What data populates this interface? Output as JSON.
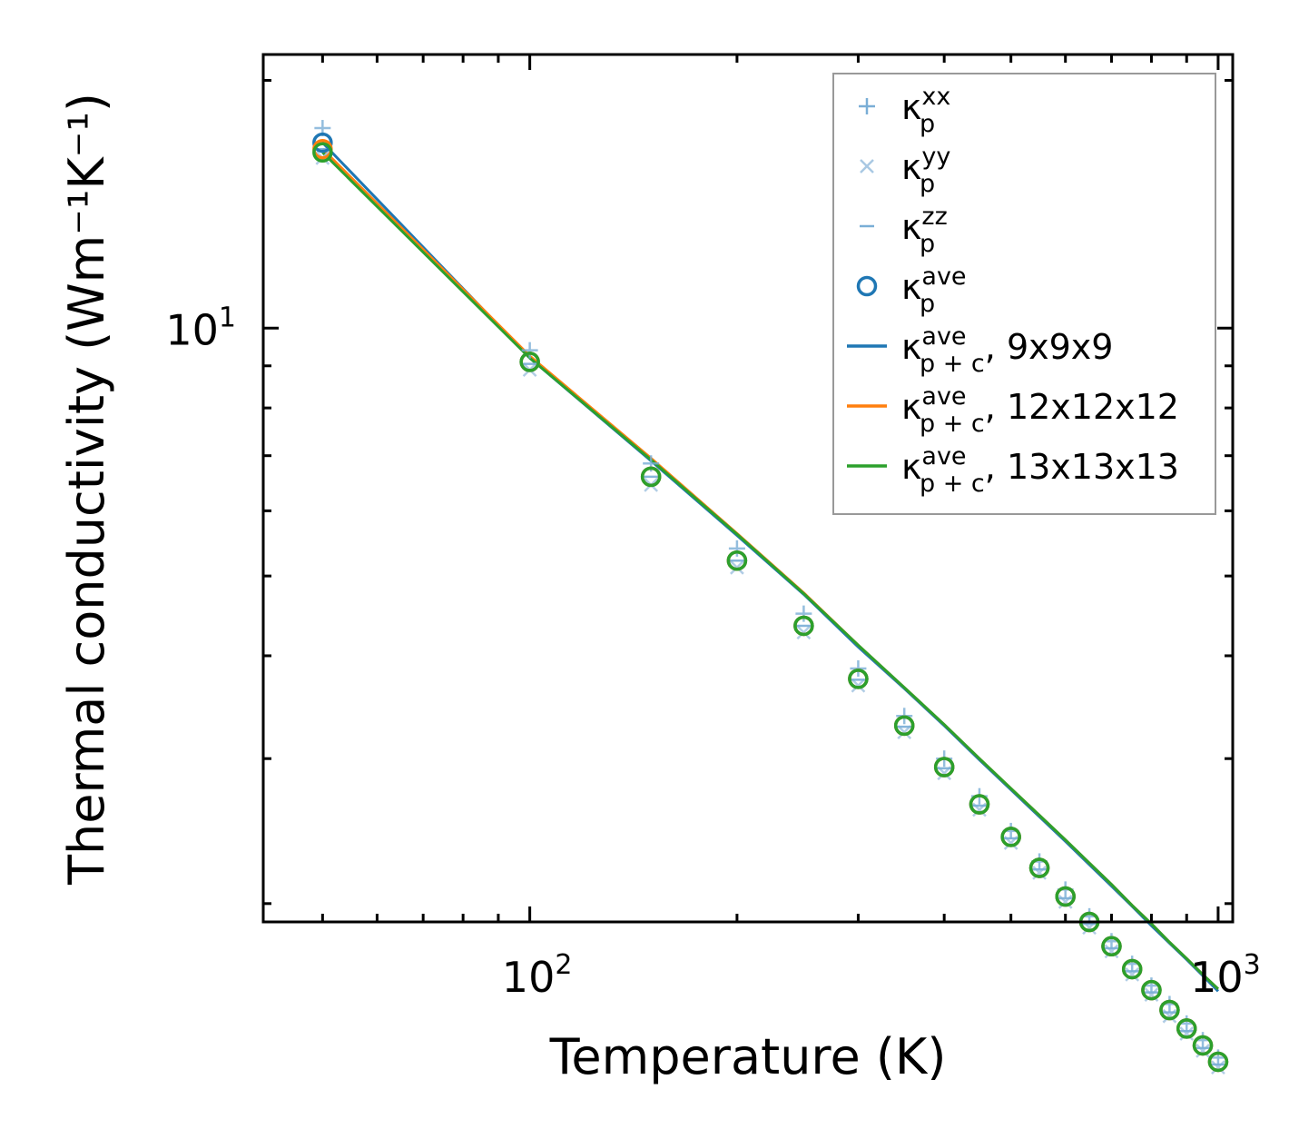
{
  "chart_data": {
    "type": "line",
    "xscale": "log",
    "yscale": "log",
    "xlabel": "Temperature (K)",
    "ylabel": "Thermal conductivity (Wm⁻¹K⁻¹)",
    "xlim": [
      41,
      1050
    ],
    "ylim": [
      1.9,
      21.5
    ],
    "x_major_ticks": [
      {
        "value": 100,
        "base": "10",
        "exp": "2"
      },
      {
        "value": 1000,
        "base": "10",
        "exp": "3"
      }
    ],
    "y_major_ticks": [
      {
        "value": 10,
        "base": "10",
        "exp": "1"
      }
    ],
    "x_minor_ticks": [
      50,
      60,
      70,
      80,
      90,
      200,
      300,
      400,
      500,
      600,
      700,
      800,
      900
    ],
    "y_minor_ticks": [
      2,
      3,
      4,
      5,
      6,
      7,
      8,
      9,
      20
    ],
    "x": [
      50,
      100,
      150,
      200,
      250,
      300,
      350,
      400,
      450,
      500,
      550,
      600,
      650,
      700,
      750,
      800,
      850,
      900,
      950,
      1000
    ],
    "colors": {
      "blue": "#1f77b4",
      "orange": "#ff7f0e",
      "green": "#2ca02c"
    },
    "scatter_series": [
      {
        "name": "kappa_p_xx",
        "marker": "plus",
        "color": "#7aaed6",
        "opacity": 0.8,
        "values": [
          17.5,
          9.4,
          6.85,
          5.4,
          4.5,
          3.86,
          3.38,
          3.0,
          2.7,
          2.45,
          2.25,
          2.08,
          1.93,
          1.8,
          1.69,
          1.59,
          1.51,
          1.43,
          1.365,
          1.3
        ]
      },
      {
        "name": "kappa_p_yy",
        "marker": "cross",
        "color": "#a9c8e3",
        "opacity": 0.9,
        "values": [
          16.1,
          8.9,
          6.45,
          5.12,
          4.27,
          3.68,
          3.23,
          2.88,
          2.6,
          2.37,
          2.18,
          2.01,
          1.87,
          1.75,
          1.64,
          1.55,
          1.46,
          1.39,
          1.325,
          1.265
        ]
      },
      {
        "name": "kappa_p_zz",
        "marker": "dash",
        "color": "#7aaed6",
        "opacity": 0.9,
        "values": [
          16.5,
          9.05,
          6.6,
          5.22,
          4.35,
          3.74,
          3.28,
          2.92,
          2.63,
          2.4,
          2.2,
          2.03,
          1.89,
          1.765,
          1.655,
          1.56,
          1.475,
          1.4,
          1.335,
          1.275
        ]
      },
      {
        "name": "kappa_p_ave_9",
        "marker": "circle",
        "color": "#1f77b4",
        "values": [
          16.8,
          9.1,
          6.6,
          5.22,
          4.35,
          3.75,
          3.29,
          2.93,
          2.64,
          2.41,
          2.21,
          2.04,
          1.9,
          1.775,
          1.665,
          1.57,
          1.485,
          1.41,
          1.345,
          1.285
        ]
      },
      {
        "name": "kappa_p_ave_12",
        "marker": "circle",
        "color": "#ff7f0e",
        "values": [
          16.5,
          9.1,
          6.6,
          5.22,
          4.35,
          3.75,
          3.29,
          2.93,
          2.64,
          2.41,
          2.21,
          2.04,
          1.9,
          1.775,
          1.665,
          1.57,
          1.485,
          1.41,
          1.345,
          1.285
        ]
      },
      {
        "name": "kappa_p_ave_13",
        "marker": "circle",
        "color": "#2ca02c",
        "values": [
          16.35,
          9.1,
          6.6,
          5.22,
          4.35,
          3.75,
          3.29,
          2.93,
          2.64,
          2.41,
          2.21,
          2.04,
          1.9,
          1.775,
          1.665,
          1.57,
          1.485,
          1.41,
          1.345,
          1.285
        ]
      }
    ],
    "line_series": [
      {
        "name": "kappa_p+c_ave, 9x9x9",
        "color": "#1f77b4",
        "values": [
          16.8,
          9.2,
          6.9,
          5.6,
          4.75,
          4.1,
          3.65,
          3.29,
          2.99,
          2.75,
          2.55,
          2.38,
          2.23,
          2.1,
          1.985,
          1.88,
          1.79,
          1.71,
          1.635,
          1.565
        ]
      },
      {
        "name": "kappa_p+c_ave, 12x12x12",
        "color": "#ff7f0e",
        "values": [
          16.5,
          9.25,
          6.95,
          5.63,
          4.77,
          4.12,
          3.66,
          3.3,
          3.0,
          2.76,
          2.56,
          2.39,
          2.24,
          2.11,
          1.99,
          1.89,
          1.795,
          1.715,
          1.64,
          1.575
        ]
      },
      {
        "name": "kappa_p+c_ave, 13x13x13",
        "color": "#2ca02c",
        "values": [
          16.35,
          9.2,
          6.92,
          5.62,
          4.76,
          4.12,
          3.66,
          3.3,
          3.0,
          2.76,
          2.56,
          2.39,
          2.24,
          2.11,
          1.99,
          1.89,
          1.795,
          1.715,
          1.64,
          1.575
        ]
      }
    ],
    "legend": {
      "placement": "top-right",
      "entries": [
        {
          "marker": "plus",
          "color": "#7aaed6",
          "base": "κ",
          "sup": "xx",
          "sub": "p",
          "suffix": ""
        },
        {
          "marker": "cross",
          "color": "#a9c8e3",
          "base": "κ",
          "sup": "yy",
          "sub": "p",
          "suffix": ""
        },
        {
          "marker": "dash",
          "color": "#7aaed6",
          "base": "κ",
          "sup": "zz",
          "sub": "p",
          "suffix": ""
        },
        {
          "marker": "circle",
          "color": "#1f77b4",
          "base": "κ",
          "sup": "ave",
          "sub": "p",
          "suffix": ""
        },
        {
          "marker": "line",
          "color": "#1f77b4",
          "base": "κ",
          "sup": "ave",
          "sub": "p + c",
          "suffix": ", 9x9x9"
        },
        {
          "marker": "line",
          "color": "#ff7f0e",
          "base": "κ",
          "sup": "ave",
          "sub": "p + c",
          "suffix": ", 12x12x12"
        },
        {
          "marker": "line",
          "color": "#2ca02c",
          "base": "κ",
          "sup": "ave",
          "sub": "p + c",
          "suffix": ", 13x13x13"
        }
      ]
    }
  }
}
